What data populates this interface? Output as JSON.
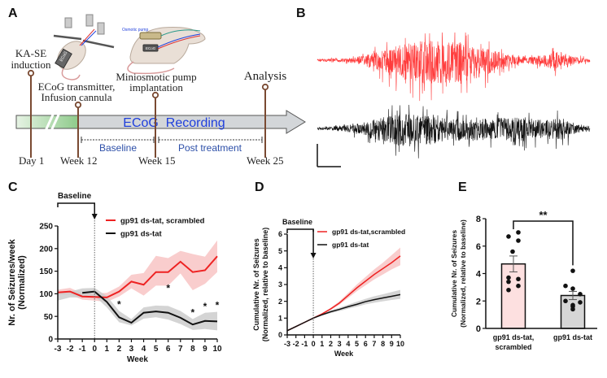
{
  "panels": {
    "A": {
      "label": "A",
      "events": [
        {
          "title_lines": [
            "KA-SE",
            "induction"
          ],
          "week_label": "Day 1"
        },
        {
          "title_lines": [
            "ECoG transmitter,",
            "Infusion cannula"
          ],
          "week_label": "Week 12"
        },
        {
          "title_lines": [
            "Miniosmotic pump",
            "implantation"
          ],
          "week_label": "Week 15"
        },
        {
          "title_lines": [
            "Analysis"
          ],
          "week_label": "Week 25"
        }
      ],
      "arrow_label": "ECoG  Recording",
      "periods": [
        {
          "label": "Baseline"
        },
        {
          "label": "Post treatment"
        }
      ],
      "illustrations": [
        {
          "name": "rat-with-ecog-transmitter",
          "device_label": "ECoG"
        },
        {
          "name": "rat-with-osmotic-pump",
          "device_labels": [
            "Osmotic pump",
            "ECoG"
          ]
        }
      ],
      "colors": {
        "timeline_line": "#7a4a32",
        "arrow_fill": "#d3d6d9",
        "green_fill": "#9ccf99",
        "text_blue": "#1f3fdc",
        "period_text": "#2d4fa8"
      }
    },
    "B": {
      "label": "B",
      "traces": [
        {
          "name": "scrambled-trace",
          "color": "#ff3b3b"
        },
        {
          "name": "treated-trace",
          "color": "#111111"
        }
      ]
    },
    "C": {
      "label": "C"
    },
    "D": {
      "label": "D"
    },
    "E": {
      "label": "E"
    }
  },
  "chart_data": [
    {
      "panel": "C",
      "type": "line",
      "title": "",
      "xlabel": "Week",
      "ylabel": "Nr. of Seizures/week (Normalized)",
      "ylabel_lines": [
        "Nr. of Seizures/week",
        "(Normalized)"
      ],
      "x": [
        -3,
        -2,
        -1,
        0,
        1,
        2,
        3,
        4,
        5,
        6,
        7,
        8,
        9,
        10
      ],
      "xticks": [
        "-3",
        "-2",
        "-1",
        "0",
        "1",
        "2",
        "3",
        "4",
        "5",
        "6",
        "7",
        "8",
        "9",
        "10"
      ],
      "yticks": [
        "0",
        "50",
        "100",
        "150",
        "200",
        "250"
      ],
      "xlim": [
        -3,
        10
      ],
      "ylim": [
        0,
        250
      ],
      "baseline_annotation": "Baseline",
      "baseline_range": [
        -3,
        0
      ],
      "series": [
        {
          "name": "gp91 ds-tat, scrambled",
          "color": "#ee2222",
          "band_color": "#f8c4c4",
          "values": [
            103,
            105,
            94,
            93,
            92,
            105,
            127,
            120,
            148,
            148,
            171,
            148,
            152,
            183
          ],
          "lower": [
            97,
            98,
            87,
            85,
            82,
            94,
            112,
            96,
            118,
            118,
            145,
            108,
            122,
            148
          ],
          "upper": [
            109,
            113,
            101,
            101,
            102,
            116,
            142,
            146,
            184,
            179,
            195,
            188,
            182,
            218
          ]
        },
        {
          "name": "gp91 ds-tat",
          "color": "#111111",
          "band_color": "#cccccc",
          "x": [
            -3,
            -2,
            -1,
            0,
            1,
            2,
            3,
            4,
            5,
            6,
            7,
            8,
            9,
            10
          ],
          "values": [
            null,
            null,
            102,
            105,
            82,
            48,
            36,
            58,
            61,
            58,
            47,
            32,
            40,
            39
          ],
          "lower": [
            85,
            92,
            92,
            95,
            70,
            37,
            30,
            45,
            48,
            43,
            33,
            20,
            22,
            19
          ],
          "upper": [
            100,
            105,
            112,
            113,
            95,
            62,
            44,
            70,
            74,
            73,
            62,
            44,
            58,
            60
          ]
        }
      ],
      "significance": [
        {
          "x": 2,
          "label": "*"
        },
        {
          "x": 6,
          "label": "*"
        },
        {
          "x": 8,
          "label": "*"
        },
        {
          "x": 9,
          "label": "*"
        },
        {
          "x": 10,
          "label": "*"
        }
      ],
      "legend": {
        "placement": "top-right",
        "entries": [
          "gp91 ds-tat, scrambled",
          "gp91 ds-tat"
        ]
      },
      "grid": false
    },
    {
      "panel": "D",
      "type": "line",
      "title": "",
      "xlabel": "Week",
      "ylabel": "Cumulative Nr. of Seizures (Normalized, relative to baseline)",
      "ylabel_lines": [
        "Cumulative Nr. of Seizures",
        "(Normalized, relative to baseline)"
      ],
      "x": [
        -3,
        -2,
        -1,
        0,
        1,
        2,
        3,
        4,
        5,
        6,
        7,
        8,
        9,
        10
      ],
      "xticks": [
        "-3",
        "-2",
        "-1",
        "0",
        "1",
        "2",
        "3",
        "4",
        "5",
        "6",
        "7",
        "8",
        "9",
        "10"
      ],
      "yticks": [
        "0",
        "1",
        "2",
        "3",
        "4",
        "5",
        "6"
      ],
      "xlim": [
        -3,
        10
      ],
      "ylim": [
        0,
        6
      ],
      "baseline_annotation": "Baseline",
      "baseline_range": [
        -3,
        0
      ],
      "series": [
        {
          "name": "gp91 ds-tat,scrambled",
          "color": "#ee2222",
          "band_color": "#f8c4c4",
          "values": [
            0.25,
            0.5,
            0.75,
            1.0,
            1.25,
            1.55,
            1.9,
            2.35,
            2.8,
            3.2,
            3.6,
            3.95,
            4.3,
            4.7
          ],
          "lower": [
            0.25,
            0.5,
            0.75,
            1.0,
            1.22,
            1.48,
            1.8,
            2.2,
            2.6,
            2.95,
            3.3,
            3.6,
            3.9,
            4.15
          ],
          "upper": [
            0.25,
            0.5,
            0.75,
            1.0,
            1.28,
            1.62,
            2.0,
            2.5,
            3.0,
            3.45,
            3.9,
            4.3,
            4.75,
            5.2
          ]
        },
        {
          "name": "gp91 ds-tat",
          "color": "#111111",
          "band_color": "#cccccc",
          "values": [
            0.25,
            0.5,
            0.75,
            1.0,
            1.2,
            1.38,
            1.52,
            1.68,
            1.82,
            1.98,
            2.1,
            2.2,
            2.3,
            2.4
          ],
          "lower": [
            0.25,
            0.5,
            0.75,
            1.0,
            1.15,
            1.3,
            1.42,
            1.56,
            1.68,
            1.82,
            1.92,
            2.0,
            2.08,
            2.15
          ],
          "upper": [
            0.25,
            0.5,
            0.75,
            1.0,
            1.25,
            1.45,
            1.62,
            1.8,
            1.98,
            2.15,
            2.3,
            2.42,
            2.55,
            2.68
          ]
        }
      ],
      "legend": {
        "placement": "top-right",
        "entries": [
          "gp91 ds-tat,scrambled",
          "gp91 ds-tat"
        ]
      },
      "grid": false
    },
    {
      "panel": "E",
      "type": "bar",
      "title": "",
      "xlabel": "",
      "ylabel": "Cumulative Nr. of Seizures (Normalized, relative to baseline)",
      "ylabel_lines": [
        "Cumulative Nr. of Seizures",
        "(Normalized, relative to baseline)"
      ],
      "categories": [
        "gp91 ds-tat, scrambled",
        "gp91 ds-tat"
      ],
      "category_lines": [
        [
          "gp91 ds-tat,",
          "scrambled"
        ],
        [
          "gp91 ds-tat"
        ]
      ],
      "values": [
        4.7,
        2.4
      ],
      "sem": [
        0.58,
        0.3
      ],
      "bar_colors": [
        "#fde0e0",
        "#d6d6d6"
      ],
      "points": [
        [
          6.7,
          7.0,
          6.4,
          5.6,
          3.7,
          3.6,
          3.4,
          3.1,
          2.8
        ],
        [
          4.2,
          3.1,
          2.9,
          2.5,
          2.0,
          1.9,
          1.7,
          1.6,
          1.4
        ]
      ],
      "yticks": [
        "0",
        "2",
        "4",
        "6",
        "8"
      ],
      "ylim": [
        0,
        8
      ],
      "significance": {
        "label": "**",
        "between": [
          0,
          1
        ]
      },
      "grid": false
    }
  ]
}
